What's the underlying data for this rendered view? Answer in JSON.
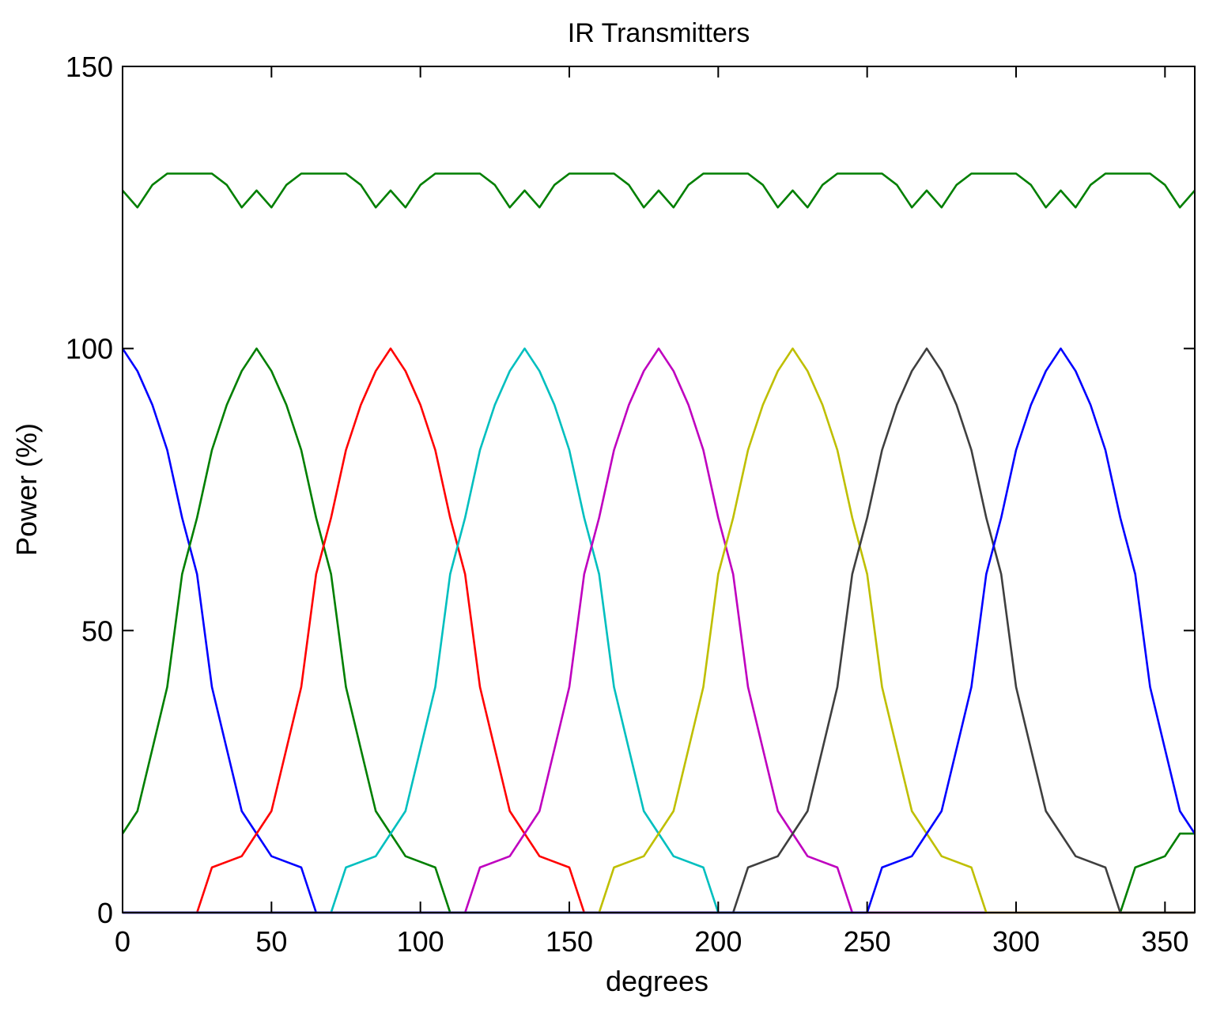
{
  "chart_data": {
    "type": "line",
    "title": "IR Transmitters",
    "xlabel": "degrees",
    "ylabel": "Power (%)",
    "xlim": [
      0,
      360
    ],
    "ylim": [
      0,
      150
    ],
    "xticks": [
      0,
      50,
      100,
      150,
      200,
      250,
      300,
      350
    ],
    "yticks": [
      0,
      50,
      100,
      150
    ],
    "grid": false,
    "legend": "none",
    "x": [
      0,
      5,
      10,
      15,
      20,
      25,
      30,
      35,
      40,
      45,
      50,
      55,
      60,
      65,
      70,
      75,
      80,
      85,
      90,
      95,
      100,
      105,
      110,
      115,
      120,
      125,
      130,
      135,
      140,
      145,
      150,
      155,
      160,
      165,
      170,
      175,
      180,
      185,
      190,
      195,
      200,
      205,
      210,
      215,
      220,
      225,
      230,
      235,
      240,
      245,
      250,
      255,
      260,
      265,
      270,
      275,
      280,
      285,
      290,
      295,
      300,
      305,
      310,
      315,
      320,
      325,
      330,
      335,
      340,
      345,
      350,
      355,
      360
    ],
    "series": [
      {
        "color": "#0000ff",
        "values": [
          100,
          96,
          90,
          82,
          70,
          60,
          40,
          29,
          18,
          14,
          10,
          9,
          8,
          0,
          0,
          0,
          0,
          0,
          0,
          0,
          0,
          0,
          0,
          0,
          0,
          0,
          0,
          0,
          0,
          0,
          0,
          0,
          0,
          0,
          0,
          0,
          0,
          0,
          0,
          0,
          0,
          0,
          0,
          0,
          0,
          0,
          0,
          0,
          0,
          0,
          0,
          0,
          0,
          0,
          0,
          0,
          0,
          0,
          0,
          0,
          0,
          0,
          0,
          0,
          0,
          0,
          0,
          0,
          0,
          0,
          0,
          0,
          0
        ]
      },
      {
        "color": "#007f00",
        "values": [
          14,
          18,
          29,
          40,
          60,
          70,
          82,
          90,
          96,
          100,
          96,
          90,
          82,
          70,
          60,
          40,
          29,
          18,
          14,
          10,
          9,
          8,
          0,
          0,
          0,
          0,
          0,
          0,
          0,
          0,
          0,
          0,
          0,
          0,
          0,
          0,
          0,
          0,
          0,
          0,
          0,
          0,
          0,
          0,
          0,
          0,
          0,
          0,
          0,
          0,
          0,
          0,
          0,
          0,
          0,
          0,
          0,
          0,
          0,
          0,
          0,
          0,
          0,
          0,
          0,
          0,
          0,
          0,
          8,
          9,
          10,
          14,
          14
        ]
      },
      {
        "color": "#ff0000",
        "values": [
          0,
          0,
          0,
          0,
          0,
          0,
          8,
          9,
          10,
          14,
          18,
          29,
          40,
          60,
          70,
          82,
          90,
          96,
          100,
          96,
          90,
          82,
          70,
          60,
          40,
          29,
          18,
          14,
          10,
          9,
          8,
          0,
          0,
          0,
          0,
          0,
          0,
          0,
          0,
          0,
          0,
          0,
          0,
          0,
          0,
          0,
          0,
          0,
          0,
          0,
          0,
          0,
          0,
          0,
          0,
          0,
          0,
          0,
          0,
          0,
          0,
          0,
          0,
          0,
          0,
          0,
          0,
          0,
          0,
          0,
          0,
          0,
          0
        ]
      },
      {
        "color": "#00bfbf",
        "values": [
          0,
          0,
          0,
          0,
          0,
          0,
          0,
          0,
          0,
          0,
          0,
          0,
          0,
          0,
          0,
          8,
          9,
          10,
          14,
          18,
          29,
          40,
          60,
          70,
          82,
          90,
          96,
          100,
          96,
          90,
          82,
          70,
          60,
          40,
          29,
          18,
          14,
          10,
          9,
          8,
          0,
          0,
          0,
          0,
          0,
          0,
          0,
          0,
          0,
          0,
          0,
          0,
          0,
          0,
          0,
          0,
          0,
          0,
          0,
          0,
          0,
          0,
          0,
          0,
          0,
          0,
          0,
          0,
          0,
          0,
          0,
          0,
          0
        ]
      },
      {
        "color": "#bf00bf",
        "values": [
          0,
          0,
          0,
          0,
          0,
          0,
          0,
          0,
          0,
          0,
          0,
          0,
          0,
          0,
          0,
          0,
          0,
          0,
          0,
          0,
          0,
          0,
          0,
          0,
          8,
          9,
          10,
          14,
          18,
          29,
          40,
          60,
          70,
          82,
          90,
          96,
          100,
          96,
          90,
          82,
          70,
          60,
          40,
          29,
          18,
          14,
          10,
          9,
          8,
          0,
          0,
          0,
          0,
          0,
          0,
          0,
          0,
          0,
          0,
          0,
          0,
          0,
          0,
          0,
          0,
          0,
          0,
          0,
          0,
          0,
          0,
          0,
          0
        ]
      },
      {
        "color": "#bfbf00",
        "values": [
          0,
          0,
          0,
          0,
          0,
          0,
          0,
          0,
          0,
          0,
          0,
          0,
          0,
          0,
          0,
          0,
          0,
          0,
          0,
          0,
          0,
          0,
          0,
          0,
          0,
          0,
          0,
          0,
          0,
          0,
          0,
          0,
          0,
          8,
          9,
          10,
          14,
          18,
          29,
          40,
          60,
          70,
          82,
          90,
          96,
          100,
          96,
          90,
          82,
          70,
          60,
          40,
          29,
          18,
          14,
          10,
          9,
          8,
          0,
          0,
          0,
          0,
          0,
          0,
          0,
          0,
          0,
          0,
          0,
          0,
          0,
          0,
          0
        ]
      },
      {
        "color": "#3f3f3f",
        "values": [
          0,
          0,
          0,
          0,
          0,
          0,
          0,
          0,
          0,
          0,
          0,
          0,
          0,
          0,
          0,
          0,
          0,
          0,
          0,
          0,
          0,
          0,
          0,
          0,
          0,
          0,
          0,
          0,
          0,
          0,
          0,
          0,
          0,
          0,
          0,
          0,
          0,
          0,
          0,
          0,
          0,
          0,
          8,
          9,
          10,
          14,
          18,
          29,
          40,
          60,
          70,
          82,
          90,
          96,
          100,
          96,
          90,
          82,
          70,
          60,
          40,
          29,
          18,
          14,
          10,
          9,
          8,
          0,
          0,
          0,
          0,
          0,
          0
        ]
      },
      {
        "color": "#0000ff",
        "values": [
          0,
          0,
          0,
          0,
          0,
          0,
          0,
          0,
          0,
          0,
          0,
          0,
          0,
          0,
          0,
          0,
          0,
          0,
          0,
          0,
          0,
          0,
          0,
          0,
          0,
          0,
          0,
          0,
          0,
          0,
          0,
          0,
          0,
          0,
          0,
          0,
          0,
          0,
          0,
          0,
          0,
          0,
          0,
          0,
          0,
          0,
          0,
          0,
          0,
          0,
          0,
          8,
          9,
          10,
          14,
          18,
          29,
          40,
          60,
          70,
          82,
          90,
          96,
          100,
          96,
          90,
          82,
          70,
          60,
          40,
          29,
          18,
          14
        ]
      },
      {
        "color": "#007f00",
        "values": [
          128,
          125,
          129,
          131,
          131,
          131,
          131,
          129,
          125,
          128,
          125,
          129,
          131,
          131,
          131,
          131,
          129,
          125,
          128,
          125,
          129,
          131,
          131,
          131,
          131,
          129,
          125,
          128,
          125,
          129,
          131,
          131,
          131,
          131,
          129,
          125,
          128,
          125,
          129,
          131,
          131,
          131,
          131,
          129,
          125,
          128,
          125,
          129,
          131,
          131,
          131,
          131,
          129,
          125,
          128,
          125,
          129,
          131,
          131,
          131,
          131,
          129,
          125,
          128,
          125,
          129,
          131,
          131,
          131,
          131,
          129,
          125,
          128
        ]
      }
    ]
  }
}
